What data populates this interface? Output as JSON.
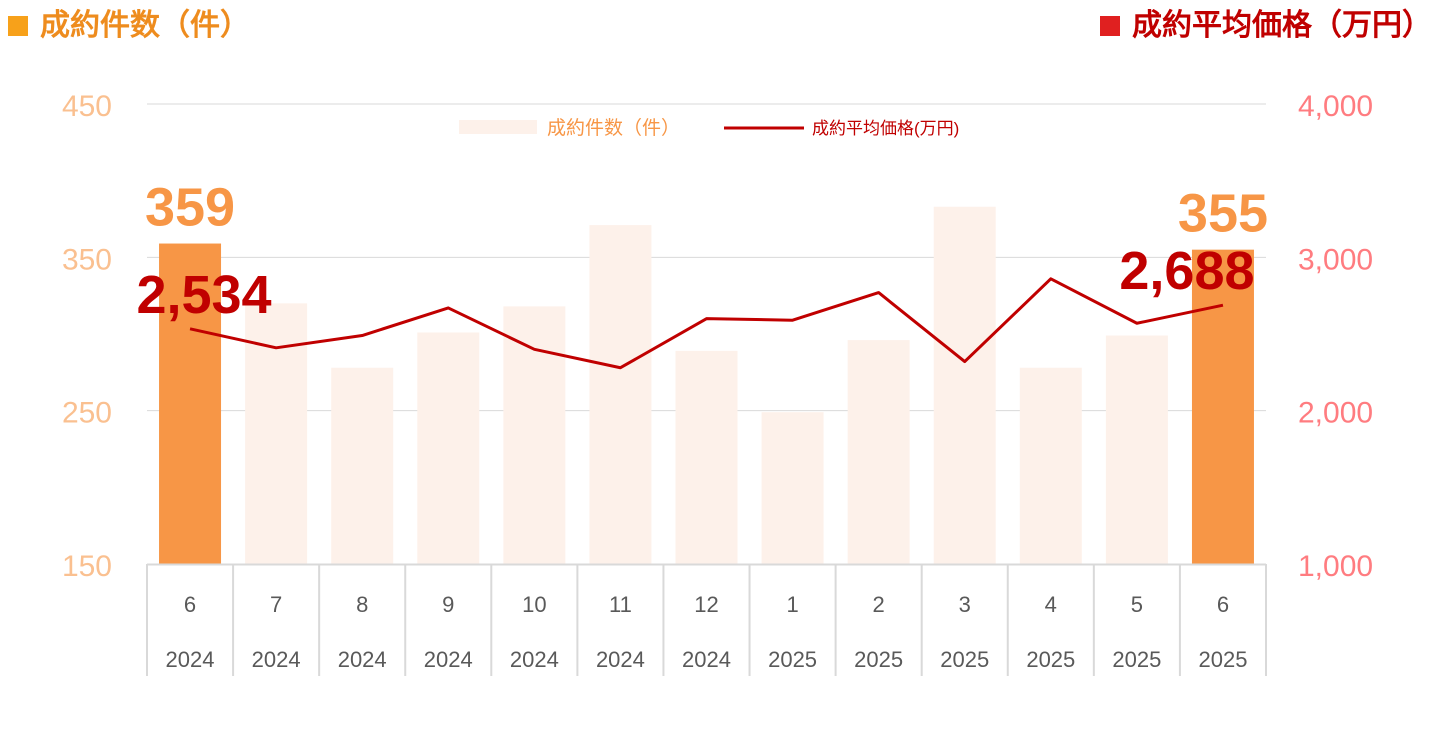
{
  "titles": {
    "left": "成約件数（件）",
    "right": "成約平均価格（万円）",
    "left_color": "#f79646",
    "right_color": "#c00000"
  },
  "chart_data": {
    "type": "bar+line",
    "categories": [
      "6",
      "7",
      "8",
      "9",
      "10",
      "11",
      "12",
      "1",
      "2",
      "3",
      "4",
      "5",
      "6"
    ],
    "category_years": [
      "2024",
      "2024",
      "2024",
      "2024",
      "2024",
      "2024",
      "2024",
      "2025",
      "2025",
      "2025",
      "2025",
      "2025",
      "2025"
    ],
    "series": [
      {
        "name": "成約件数（件）",
        "type": "bar",
        "axis": "left",
        "values": [
          359,
          320,
          278,
          301,
          318,
          371,
          289,
          249,
          296,
          383,
          278,
          299,
          355
        ],
        "color": "#fdf1ea",
        "highlight_color": "#f79646",
        "highlight_indices": [
          0,
          12
        ]
      },
      {
        "name": "成約平均価格(万円)",
        "type": "line",
        "axis": "right",
        "values": [
          2534,
          2410,
          2490,
          2670,
          2400,
          2280,
          2600,
          2590,
          2770,
          2320,
          2860,
          2570,
          2688
        ],
        "color": "#c00000"
      }
    ],
    "left_axis": {
      "ylim": [
        150,
        450
      ],
      "ticks": [
        "150",
        "250",
        "350",
        "450"
      ],
      "color": "#fac090"
    },
    "right_axis": {
      "ylim": [
        1000,
        4000
      ],
      "ticks": [
        "1,000",
        "2,000",
        "3,000",
        "4,000"
      ],
      "color": "#ff7c80"
    },
    "bar_labels": [
      {
        "index": 0,
        "text": "359"
      },
      {
        "index": 12,
        "text": "355"
      }
    ],
    "line_labels": [
      {
        "index": 0,
        "text": "2,534"
      },
      {
        "index": 12,
        "text": "2,688"
      }
    ],
    "grid": true,
    "legend": "top-center"
  }
}
